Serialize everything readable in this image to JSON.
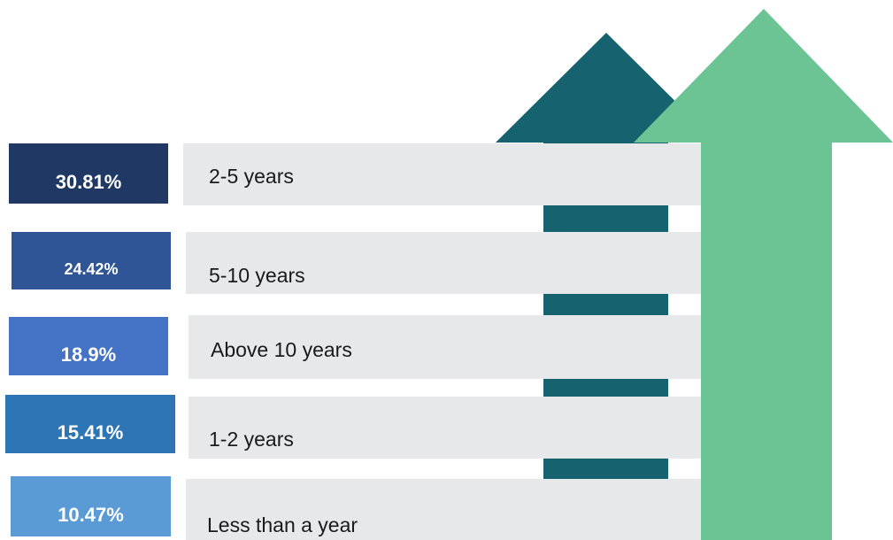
{
  "chart_data": {
    "type": "bar",
    "title": "",
    "categories": [
      "2-5 years",
      "5-10 years",
      "Above 10 years",
      "1-2 years",
      "Less than a year"
    ],
    "values": [
      30.81,
      24.42,
      18.9,
      15.41,
      10.47
    ],
    "value_labels": [
      "30.81%",
      "24.42%",
      "18.9%",
      "15.41%",
      "10.47%"
    ],
    "unit": "%",
    "colors": [
      "#1f3864",
      "#2f5597",
      "#4472c4",
      "#2e75b6",
      "#5b9bd5"
    ],
    "decoration": {
      "arrow_dark_color": "#16636f",
      "arrow_green_color": "#6cc494",
      "bar_background": "#e7e8ea"
    }
  }
}
